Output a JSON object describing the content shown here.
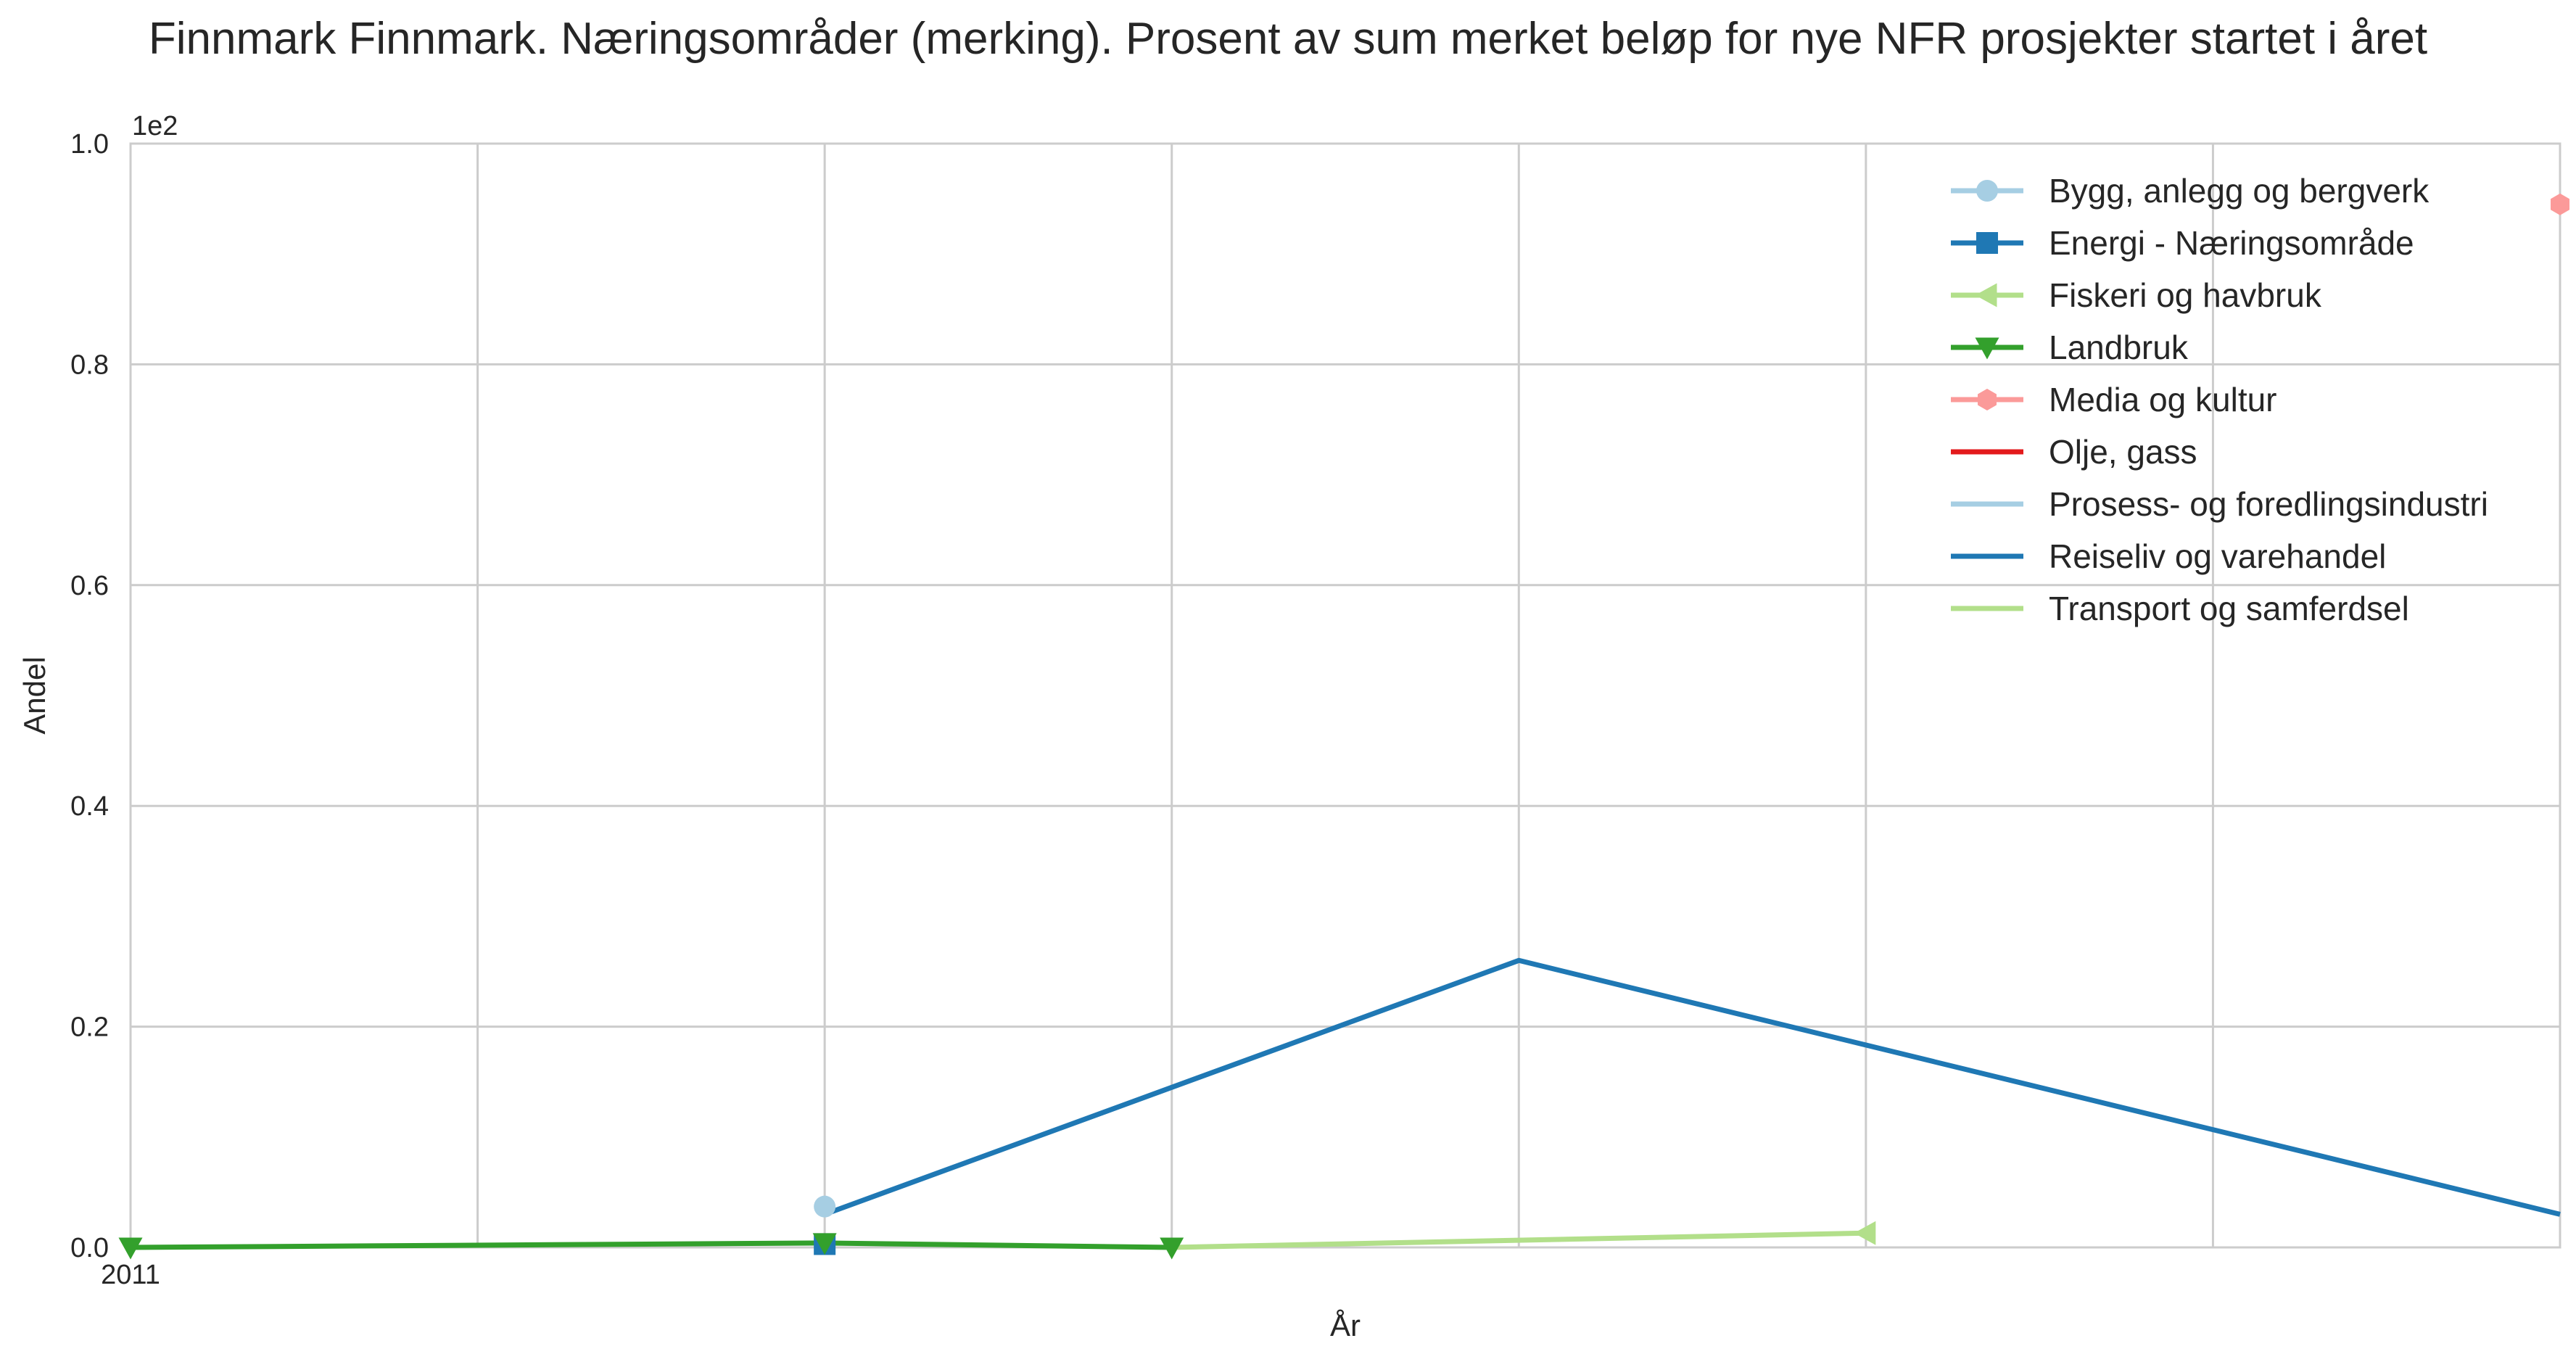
{
  "chart_data": {
    "type": "line",
    "title": "Finnmark Finnmark. Næringsområder (merking). Prosent av sum merket beløp for nye NFR prosjekter startet i året",
    "xlabel": "År",
    "ylabel": "Andel",
    "x_tick_labels": [
      "2011"
    ],
    "x_range": [
      2011,
      2018
    ],
    "ylim": [
      0,
      1.0
    ],
    "y_ticks": [
      0.0,
      0.2,
      0.4,
      0.6,
      0.8,
      1.0
    ],
    "y_tick_labels": [
      "0.0",
      "0.2",
      "0.4",
      "0.6",
      "0.8",
      "1.0"
    ],
    "y_offset_label": "1e2",
    "grid": true,
    "legend_position": "top-right",
    "series": [
      {
        "name": "Bygg, anlegg og bergverk",
        "color": "#a6cee3",
        "marker": "circle",
        "points": [
          [
            2013,
            0.037
          ]
        ]
      },
      {
        "name": "Energi - Næringsområde",
        "color": "#1f78b4",
        "marker": "square",
        "points": [
          [
            2013,
            0.003
          ]
        ]
      },
      {
        "name": "Fiskeri og havbruk",
        "color": "#b2df8a",
        "marker": "triangle-left",
        "points": [
          [
            2016,
            0.013
          ]
        ]
      },
      {
        "name": "Landbruk",
        "color": "#33a02c",
        "marker": "triangle-down",
        "points": [
          [
            2011,
            0.0
          ],
          [
            2013,
            0.004
          ],
          [
            2014,
            0.0
          ]
        ]
      },
      {
        "name": "Media og kultur",
        "color": "#fb9a99",
        "marker": "hexagon",
        "points": [
          [
            2018,
            0.945
          ]
        ]
      },
      {
        "name": "Olje, gass",
        "color": "#e31a1c",
        "marker": "none",
        "points": []
      },
      {
        "name": "Prosess- og foredlingsindustri",
        "color": "#a6cee3",
        "marker": "none",
        "points": []
      },
      {
        "name": "Reiseliv og varehandel",
        "color": "#1f78b4",
        "marker": "none",
        "points": [
          [
            2013,
            0.03
          ],
          [
            2015,
            0.26
          ],
          [
            2018,
            0.03
          ]
        ]
      },
      {
        "name": "Transport og samferdsel",
        "color": "#b2df8a",
        "marker": "none",
        "points": [
          [
            2014,
            0.0
          ],
          [
            2016,
            0.013
          ]
        ]
      }
    ]
  }
}
